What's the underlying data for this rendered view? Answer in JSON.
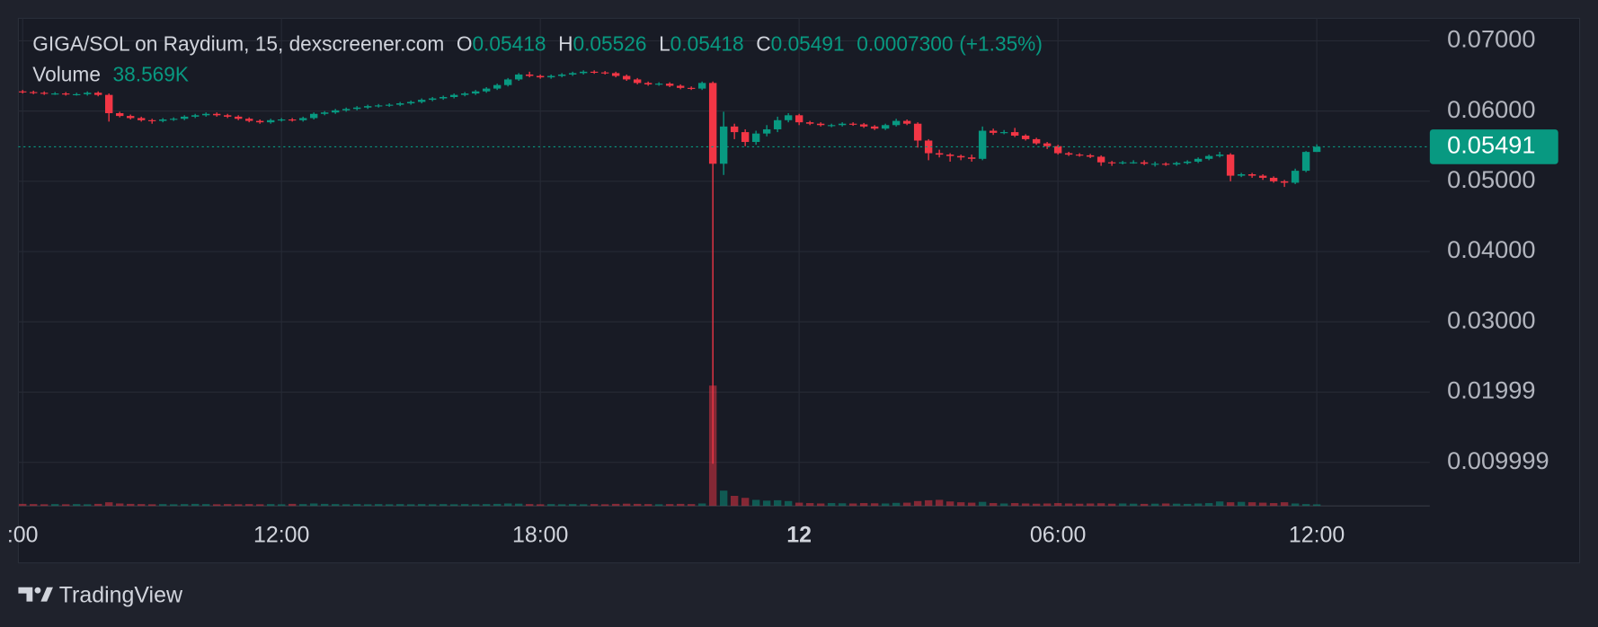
{
  "chart_data": {
    "type": "candlestick",
    "title": "GIGA/SOL on Raydium, 15, dexscreener.com",
    "ohlc_letters": [
      "O",
      "H",
      "L",
      "C"
    ],
    "change_label": "0.0007300",
    "change_percent_label": "(+1.35%)",
    "volume_title": "Volume",
    "volume_value_label": "38.569K",
    "up_color": "#089981",
    "down_color": "#f23645",
    "grid": true,
    "xlim": [
      5.9,
      38.62
    ],
    "ylim": [
      0.0038,
      0.0732
    ],
    "volume_lim": [
      0,
      3300000
    ],
    "xticks": [
      {
        "value": 6,
        "label": ":00"
      },
      {
        "value": 12,
        "label": "12:00"
      },
      {
        "value": 18,
        "label": "18:00"
      },
      {
        "value": 24,
        "label": "12",
        "bold": true
      },
      {
        "value": 30,
        "label": "06:00"
      },
      {
        "value": 36,
        "label": "12:00"
      }
    ],
    "yticks": [
      {
        "value": 0.07,
        "label": "0.07000"
      },
      {
        "value": 0.06,
        "label": "0.06000"
      },
      {
        "value": 0.05,
        "label": "0.05000"
      },
      {
        "value": 0.04,
        "label": "0.04000"
      },
      {
        "value": 0.03,
        "label": "0.03000"
      },
      0.01999,
      0.009999
    ],
    "x": [
      6,
      6.25,
      6.5,
      6.75,
      7,
      7.25,
      7.5,
      7.75,
      8,
      8.25,
      8.5,
      8.75,
      9,
      9.25,
      9.5,
      9.75,
      10,
      10.25,
      10.5,
      10.75,
      11,
      11.25,
      11.5,
      11.75,
      12,
      12.25,
      12.5,
      12.75,
      13,
      13.25,
      13.5,
      13.75,
      14,
      14.25,
      14.5,
      14.75,
      15,
      15.25,
      15.5,
      15.75,
      16,
      16.25,
      16.5,
      16.75,
      17,
      17.25,
      17.5,
      17.75,
      18,
      18.25,
      18.5,
      18.75,
      19,
      19.25,
      19.5,
      19.75,
      20,
      20.25,
      20.5,
      20.75,
      21,
      21.25,
      21.5,
      21.75,
      22,
      22.25,
      22.5,
      22.75,
      23,
      23.25,
      23.5,
      23.75,
      24,
      24.25,
      24.5,
      24.75,
      25,
      25.25,
      25.5,
      25.75,
      26,
      26.25,
      26.5,
      26.75,
      27,
      27.25,
      27.5,
      27.75,
      28,
      28.25,
      28.5,
      28.75,
      29,
      29.25,
      29.5,
      29.75,
      30,
      30.25,
      30.5,
      30.75,
      31,
      31.25,
      31.5,
      31.75,
      32,
      32.25,
      32.5,
      32.75,
      33,
      33.25,
      33.5,
      33.75,
      34,
      34.25,
      34.5,
      34.75,
      35,
      35.25,
      35.5,
      35.75,
      36
    ],
    "open": [
      0.0628,
      0.0627,
      0.0626,
      0.0625,
      0.0625,
      0.0624,
      0.0624,
      0.0626,
      0.0623,
      0.0597,
      0.0593,
      0.059,
      0.0587,
      0.0586,
      0.0588,
      0.0589,
      0.0592,
      0.0594,
      0.0596,
      0.0594,
      0.0592,
      0.0589,
      0.0586,
      0.0584,
      0.0587,
      0.0588,
      0.0587,
      0.059,
      0.0596,
      0.0598,
      0.0601,
      0.0603,
      0.0605,
      0.0607,
      0.0608,
      0.0609,
      0.0611,
      0.0613,
      0.0616,
      0.0618,
      0.062,
      0.0623,
      0.0625,
      0.0628,
      0.0632,
      0.0637,
      0.0645,
      0.0652,
      0.065,
      0.0648,
      0.065,
      0.0652,
      0.0654,
      0.0656,
      0.0655,
      0.0654,
      0.065,
      0.0645,
      0.064,
      0.0638,
      0.0639,
      0.0636,
      0.0633,
      0.0632,
      0.064,
      0.0525,
      0.0578,
      0.057,
      0.0556,
      0.0568,
      0.0574,
      0.0587,
      0.0594,
      0.0584,
      0.0582,
      0.058,
      0.058,
      0.0582,
      0.0581,
      0.0578,
      0.0575,
      0.058,
      0.0586,
      0.0582,
      0.0558,
      0.054,
      0.0538,
      0.0536,
      0.0534,
      0.0532,
      0.0572,
      0.0569,
      0.057,
      0.0565,
      0.056,
      0.0554,
      0.055,
      0.054,
      0.0538,
      0.0537,
      0.0535,
      0.0527,
      0.0526,
      0.0527,
      0.0527,
      0.0525,
      0.0525,
      0.0524,
      0.0526,
      0.0528,
      0.0532,
      0.0536,
      0.0538,
      0.0508,
      0.051,
      0.0508,
      0.0505,
      0.05,
      0.0498,
      0.0515,
      0.05418
    ],
    "high": [
      0.063,
      0.0629,
      0.0628,
      0.0627,
      0.0627,
      0.0626,
      0.0628,
      0.0628,
      0.0625,
      0.0599,
      0.0595,
      0.0592,
      0.0589,
      0.059,
      0.0591,
      0.0594,
      0.0596,
      0.0598,
      0.0598,
      0.0596,
      0.0594,
      0.0591,
      0.0588,
      0.0589,
      0.059,
      0.059,
      0.0592,
      0.0598,
      0.06,
      0.0603,
      0.0605,
      0.0607,
      0.0609,
      0.061,
      0.0611,
      0.0613,
      0.0615,
      0.0618,
      0.062,
      0.0622,
      0.0625,
      0.0627,
      0.063,
      0.0634,
      0.0639,
      0.0647,
      0.0654,
      0.0656,
      0.0652,
      0.0652,
      0.0654,
      0.0656,
      0.0658,
      0.0658,
      0.0657,
      0.0656,
      0.0652,
      0.0647,
      0.0642,
      0.0641,
      0.0641,
      0.0638,
      0.0635,
      0.0642,
      0.0642,
      0.0599,
      0.0582,
      0.0574,
      0.0572,
      0.058,
      0.0592,
      0.0597,
      0.0596,
      0.0586,
      0.0584,
      0.0582,
      0.0584,
      0.0584,
      0.0583,
      0.058,
      0.0582,
      0.0589,
      0.0588,
      0.0584,
      0.056,
      0.0545,
      0.054,
      0.0538,
      0.0538,
      0.0578,
      0.0575,
      0.0573,
      0.0576,
      0.0567,
      0.0562,
      0.0556,
      0.0552,
      0.0542,
      0.054,
      0.0539,
      0.0537,
      0.0529,
      0.0529,
      0.053,
      0.053,
      0.0528,
      0.0527,
      0.0528,
      0.053,
      0.0534,
      0.0538,
      0.0542,
      0.054,
      0.0512,
      0.0512,
      0.051,
      0.0507,
      0.0502,
      0.0518,
      0.0543,
      0.05526
    ],
    "low": [
      0.0625,
      0.0624,
      0.0623,
      0.0623,
      0.0622,
      0.0622,
      0.0622,
      0.0621,
      0.0585,
      0.0591,
      0.0588,
      0.0585,
      0.0582,
      0.0584,
      0.0586,
      0.0587,
      0.059,
      0.0592,
      0.0592,
      0.059,
      0.0587,
      0.0584,
      0.0582,
      0.0582,
      0.0585,
      0.0585,
      0.0585,
      0.0588,
      0.0594,
      0.0596,
      0.0599,
      0.0601,
      0.0603,
      0.0605,
      0.0606,
      0.0607,
      0.0609,
      0.0611,
      0.0614,
      0.0616,
      0.0618,
      0.0621,
      0.0623,
      0.0626,
      0.063,
      0.0635,
      0.0643,
      0.0648,
      0.0646,
      0.0646,
      0.0648,
      0.065,
      0.0652,
      0.0653,
      0.0652,
      0.0648,
      0.0643,
      0.0638,
      0.0636,
      0.0636,
      0.0634,
      0.0631,
      0.063,
      0.063,
      0.0098,
      0.0509,
      0.056,
      0.055,
      0.0552,
      0.0564,
      0.057,
      0.0584,
      0.058,
      0.058,
      0.0578,
      0.0577,
      0.0578,
      0.0579,
      0.0576,
      0.0573,
      0.0573,
      0.0578,
      0.058,
      0.0548,
      0.053,
      0.0534,
      0.0528,
      0.053,
      0.0528,
      0.053,
      0.0566,
      0.0567,
      0.0563,
      0.0558,
      0.0552,
      0.0546,
      0.0538,
      0.0536,
      0.0535,
      0.0533,
      0.0522,
      0.0522,
      0.0524,
      0.0525,
      0.0523,
      0.0521,
      0.0522,
      0.0522,
      0.0524,
      0.0526,
      0.053,
      0.0534,
      0.05,
      0.0506,
      0.0505,
      0.0502,
      0.0498,
      0.0492,
      0.0496,
      0.0513,
      0.05418
    ],
    "close": [
      0.0627,
      0.0626,
      0.0625,
      0.0625,
      0.0624,
      0.0624,
      0.0626,
      0.0623,
      0.0597,
      0.0593,
      0.059,
      0.0587,
      0.0586,
      0.0588,
      0.0589,
      0.0592,
      0.0594,
      0.0596,
      0.0594,
      0.0592,
      0.0589,
      0.0586,
      0.0584,
      0.0587,
      0.0588,
      0.0587,
      0.059,
      0.0596,
      0.0598,
      0.0601,
      0.0603,
      0.0605,
      0.0607,
      0.0608,
      0.0609,
      0.0611,
      0.0613,
      0.0616,
      0.0618,
      0.062,
      0.0623,
      0.0625,
      0.0628,
      0.0632,
      0.0637,
      0.0645,
      0.0652,
      0.065,
      0.0648,
      0.065,
      0.0652,
      0.0654,
      0.0656,
      0.0655,
      0.0654,
      0.065,
      0.0645,
      0.064,
      0.0638,
      0.0639,
      0.0636,
      0.0633,
      0.0632,
      0.064,
      0.0525,
      0.0578,
      0.057,
      0.0556,
      0.0568,
      0.0574,
      0.0587,
      0.0594,
      0.0584,
      0.0582,
      0.058,
      0.058,
      0.0582,
      0.0581,
      0.0578,
      0.0575,
      0.058,
      0.0586,
      0.0582,
      0.0558,
      0.054,
      0.0538,
      0.0536,
      0.0534,
      0.0532,
      0.0572,
      0.0569,
      0.057,
      0.0565,
      0.056,
      0.0554,
      0.055,
      0.054,
      0.0538,
      0.0537,
      0.0535,
      0.0527,
      0.0526,
      0.0527,
      0.0527,
      0.0525,
      0.0525,
      0.0524,
      0.0526,
      0.0528,
      0.0532,
      0.0536,
      0.0538,
      0.0508,
      0.051,
      0.0508,
      0.0505,
      0.05,
      0.0498,
      0.0515,
      0.05418,
      0.05491
    ],
    "volume": [
      50000,
      45000,
      40000,
      45000,
      40000,
      45000,
      40000,
      50000,
      90000,
      60000,
      50000,
      45000,
      40000,
      45000,
      40000,
      45000,
      50000,
      45000,
      40000,
      45000,
      40000,
      45000,
      40000,
      45000,
      40000,
      50000,
      45000,
      60000,
      50000,
      45000,
      40000,
      45000,
      40000,
      45000,
      40000,
      45000,
      40000,
      45000,
      40000,
      45000,
      40000,
      45000,
      40000,
      45000,
      50000,
      60000,
      55000,
      45000,
      40000,
      45000,
      40000,
      45000,
      40000,
      45000,
      40000,
      50000,
      55000,
      50000,
      45000,
      40000,
      45000,
      50000,
      45000,
      60000,
      3000000,
      380000,
      250000,
      200000,
      150000,
      130000,
      140000,
      120000,
      80000,
      70000,
      60000,
      70000,
      65000,
      60000,
      70000,
      65000,
      60000,
      75000,
      80000,
      120000,
      140000,
      150000,
      110000,
      90000,
      80000,
      100000,
      70000,
      60000,
      70000,
      60000,
      55000,
      60000,
      70000,
      60000,
      55000,
      60000,
      65000,
      55000,
      60000,
      55000,
      50000,
      55000,
      60000,
      55000,
      50000,
      60000,
      70000,
      110000,
      90000,
      100000,
      90000,
      80000,
      70000,
      90000,
      60000,
      45000,
      38569
    ]
  },
  "branding": "TradingView"
}
